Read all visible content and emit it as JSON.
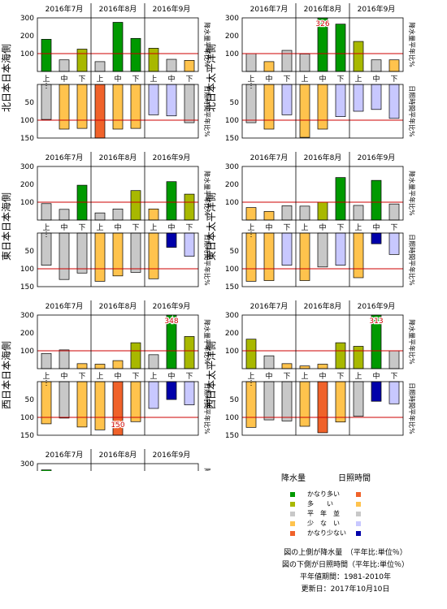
{
  "common": {
    "months": [
      "2016年7月",
      "2016年8月",
      "2016年9月"
    ],
    "dekads": [
      "上",
      "中",
      "下",
      "上",
      "中",
      "下",
      "上",
      "中",
      "下"
    ],
    "precip_axis_label": "降水量平年比%",
    "sun_axis_label": "日照時間平年比%",
    "precip_ticks": [
      "300",
      "200",
      "100"
    ],
    "sun_ticks": [
      "50",
      "100",
      "150"
    ]
  },
  "colors": {
    "very_many": "#009900",
    "many": "#a8b800",
    "normal": "#c8c8c8",
    "few": "#ffc34d",
    "very_few_precip": "#f0622a",
    "sun_very_many": "#f0622a",
    "sun_many": "#ffc34d",
    "sun_normal": "#c8c8c8",
    "sun_few": "#c8c8ff",
    "sun_very_few": "#0000aa",
    "ref_line": "#cc0000"
  },
  "chart_data": [
    {
      "type": "bar",
      "region": "北日本日本海側",
      "categories": [
        "7月上",
        "7月中",
        "7月下",
        "8月上",
        "8月中",
        "8月下",
        "9月上",
        "9月中",
        "9月下"
      ],
      "precip_values": [
        180,
        65,
        125,
        55,
        275,
        185,
        130,
        68,
        62
      ],
      "precip_classes": [
        "very_many",
        "normal",
        "many",
        "normal",
        "very_many",
        "very_many",
        "many",
        "normal",
        "few"
      ],
      "precip_labels": [],
      "sun_values": [
        98,
        125,
        123,
        150,
        125,
        123,
        85,
        88,
        107
      ],
      "sun_classes": [
        "normal",
        "few",
        "few",
        "very_many",
        "few",
        "few",
        "sun_few",
        "sun_few",
        "normal"
      ],
      "sun_labels": []
    },
    {
      "type": "bar",
      "region": "北日本太平洋側",
      "categories": [
        "7月上",
        "7月中",
        "7月下",
        "8月上",
        "8月中",
        "8月下",
        "9月上",
        "9月中",
        "9月下"
      ],
      "precip_values": [
        100,
        55,
        118,
        98,
        326,
        265,
        168,
        65,
        65
      ],
      "precip_classes": [
        "normal",
        "few",
        "normal",
        "normal",
        "very_many",
        "very_many",
        "many",
        "normal",
        "few"
      ],
      "precip_labels": [
        {
          "index": 4,
          "text": "326"
        }
      ],
      "sun_values": [
        107,
        125,
        85,
        148,
        125,
        90,
        75,
        70,
        95
      ],
      "sun_classes": [
        "normal",
        "few",
        "sun_few",
        "few",
        "few",
        "sun_few",
        "sun_few",
        "sun_few",
        "sun_few"
      ],
      "sun_labels": []
    },
    {
      "type": "bar",
      "region": "東日本日本海側",
      "categories": [
        "7月上",
        "7月中",
        "7月下",
        "8月上",
        "8月中",
        "8月下",
        "9月上",
        "9月中",
        "9月下"
      ],
      "precip_values": [
        92,
        60,
        195,
        40,
        62,
        165,
        62,
        215,
        145
      ],
      "precip_classes": [
        "normal",
        "normal",
        "very_many",
        "normal",
        "normal",
        "many",
        "few",
        "very_many",
        "many"
      ],
      "precip_labels": [],
      "sun_values": [
        90,
        130,
        112,
        135,
        120,
        110,
        128,
        40,
        65
      ],
      "sun_classes": [
        "normal",
        "normal",
        "normal",
        "few",
        "few",
        "normal",
        "few",
        "sun_very_few",
        "sun_few"
      ],
      "sun_labels": []
    },
    {
      "type": "bar",
      "region": "東日本太平洋側",
      "categories": [
        "7月上",
        "7月中",
        "7月下",
        "8月上",
        "8月中",
        "8月下",
        "9月上",
        "9月中",
        "9月下"
      ],
      "precip_values": [
        70,
        48,
        80,
        78,
        100,
        238,
        82,
        222,
        90
      ],
      "precip_classes": [
        "few",
        "few",
        "normal",
        "normal",
        "many",
        "very_many",
        "normal",
        "very_many",
        "normal"
      ],
      "precip_labels": [],
      "sun_values": [
        135,
        133,
        90,
        133,
        95,
        90,
        125,
        30,
        60
      ],
      "sun_classes": [
        "few",
        "few",
        "sun_few",
        "few",
        "normal",
        "sun_few",
        "few",
        "sun_very_few",
        "sun_few"
      ],
      "sun_labels": []
    },
    {
      "type": "bar",
      "region": "西日本日本海側",
      "categories": [
        "7月上",
        "7月中",
        "7月下",
        "8月上",
        "8月中",
        "8月下",
        "9月上",
        "9月中",
        "9月下"
      ],
      "precip_values": [
        85,
        105,
        28,
        25,
        45,
        145,
        78,
        348,
        180
      ],
      "precip_classes": [
        "normal",
        "normal",
        "few",
        "few",
        "few",
        "many",
        "normal",
        "very_many",
        "many"
      ],
      "precip_labels": [
        {
          "index": 7,
          "text": "348"
        }
      ],
      "sun_values": [
        118,
        102,
        127,
        135,
        150,
        112,
        75,
        50,
        65
      ],
      "sun_classes": [
        "few",
        "normal",
        "few",
        "few",
        "very_many",
        "few",
        "sun_few",
        "sun_very_few",
        "sun_few"
      ],
      "sun_labels": [
        {
          "index": 4,
          "text": "150"
        }
      ]
    },
    {
      "type": "bar",
      "region": "西日本太平洋側",
      "categories": [
        "7月上",
        "7月中",
        "7月下",
        "8月上",
        "8月中",
        "8月下",
        "9月上",
        "9月中",
        "9月下"
      ],
      "precip_values": [
        165,
        72,
        28,
        15,
        25,
        145,
        125,
        313,
        100
      ],
      "precip_classes": [
        "many",
        "normal",
        "few",
        "few",
        "few",
        "many",
        "many",
        "very_many",
        "normal"
      ],
      "precip_labels": [
        {
          "index": 7,
          "text": "313"
        }
      ],
      "sun_values": [
        128,
        107,
        110,
        125,
        143,
        113,
        97,
        55,
        62
      ],
      "sun_classes": [
        "few",
        "normal",
        "normal",
        "few",
        "very_many",
        "few",
        "normal",
        "sun_very_few",
        "sun_few"
      ],
      "sun_labels": []
    },
    {
      "type": "bar",
      "region": "沖縄・奄美",
      "categories": [
        "7月上",
        "7月中",
        "7月下",
        "8月上",
        "8月中",
        "8月下",
        "9月上",
        "9月中",
        "9月下"
      ],
      "precip_values": [
        265,
        85,
        35,
        170,
        50,
        22,
        248,
        125,
        70
      ],
      "precip_classes": [
        "very_many",
        "normal",
        "few",
        "many",
        "normal",
        "few",
        "many",
        "many",
        "normal"
      ],
      "precip_labels": [],
      "sun_values": [
        100,
        110,
        122,
        88,
        118,
        120,
        55,
        85,
        102
      ],
      "sun_classes": [
        "normal",
        "normal",
        "few",
        "sun_few",
        "normal",
        "few",
        "sun_very_few",
        "sun_few",
        "normal"
      ],
      "sun_labels": []
    }
  ],
  "legend": {
    "precip_title": "降水量",
    "sun_title": "日照時間",
    "rows": [
      {
        "label": "かなり多い",
        "precip_color": "#009900",
        "sun_color": "#f0622a"
      },
      {
        "label": "多　　い",
        "precip_color": "#a8b800",
        "sun_color": "#ffc34d"
      },
      {
        "label": "平　年　並",
        "precip_color": "#c8c8c8",
        "sun_color": "#c8c8c8"
      },
      {
        "label": "少　な　い",
        "precip_color": "#ffc34d",
        "sun_color": "#c8c8ff"
      },
      {
        "label": "かなり少ない",
        "precip_color": "#f0622a",
        "sun_color": "#0000aa"
      }
    ],
    "notes": [
      "図の上側が降水量　（平年比:単位％）",
      "図の下側が日照時間（平年比:単位％）",
      "平年値期間：1981-2010年",
      "更新日：2017年10月10日"
    ]
  }
}
